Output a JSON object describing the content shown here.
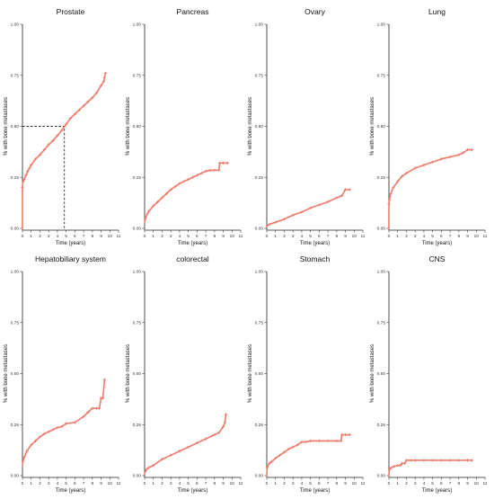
{
  "figure": {
    "line_color": "#F07A6A",
    "axis_color": "#222222",
    "background": "#ffffff"
  },
  "chart_data": [
    {
      "type": "line",
      "title": "Prostate",
      "xlabel": "Time (years)",
      "ylabel": "% with bone metastases",
      "xlim": [
        0,
        11
      ],
      "ylim": [
        0,
        1
      ],
      "xticks": [
        "0",
        "1",
        "2",
        "3",
        "4",
        "5",
        "6",
        "7",
        "8",
        "9",
        "10",
        "11"
      ],
      "yticks": [
        "0.00",
        "0.25",
        "0.50",
        "0.75",
        "1.00"
      ],
      "grid": false,
      "median_line": {
        "x": 4.8,
        "y": 0.5
      },
      "series": [
        {
          "x": [
            0,
            0,
            0.05,
            0.2,
            0.4,
            0.6,
            0.8,
            1,
            1.5,
            2,
            2.5,
            3,
            3.5,
            4,
            4.5,
            5,
            5.5,
            6,
            6.5,
            7,
            7.5,
            8,
            8.5,
            9,
            9.3,
            9.4,
            9.5
          ],
          "y": [
            0,
            0.2,
            0.23,
            0.24,
            0.26,
            0.28,
            0.295,
            0.31,
            0.34,
            0.36,
            0.385,
            0.41,
            0.43,
            0.455,
            0.48,
            0.51,
            0.54,
            0.56,
            0.58,
            0.6,
            0.62,
            0.64,
            0.665,
            0.7,
            0.72,
            0.74,
            0.76
          ]
        }
      ]
    },
    {
      "type": "line",
      "title": "Pancreas",
      "xlabel": "Time (years)",
      "ylabel": "% with bone metastases",
      "xlim": [
        0,
        11
      ],
      "ylim": [
        0,
        1
      ],
      "xticks": [
        "0",
        "1",
        "2",
        "3",
        "4",
        "5",
        "6",
        "7",
        "8",
        "9",
        "10",
        "11"
      ],
      "yticks": [
        "0.00",
        "0.25",
        "0.50",
        "0.75",
        "1.00"
      ],
      "grid": false,
      "series": [
        {
          "x": [
            0,
            0.1,
            0.3,
            0.5,
            1,
            1.5,
            2,
            2.5,
            3,
            3.5,
            4,
            4.5,
            5,
            5.5,
            6,
            6.5,
            7,
            7.5,
            8,
            8.5,
            8.6,
            9,
            9.5
          ],
          "y": [
            0.03,
            0.05,
            0.07,
            0.085,
            0.11,
            0.13,
            0.15,
            0.17,
            0.19,
            0.205,
            0.22,
            0.23,
            0.24,
            0.25,
            0.26,
            0.27,
            0.28,
            0.285,
            0.285,
            0.285,
            0.32,
            0.32,
            0.32
          ]
        }
      ]
    },
    {
      "type": "line",
      "title": "Ovary",
      "xlabel": "Time (years)",
      "ylabel": "% with bone metastases",
      "xlim": [
        0,
        11
      ],
      "ylim": [
        0,
        1
      ],
      "xticks": [
        "0",
        "1",
        "2",
        "3",
        "4",
        "5",
        "6",
        "7",
        "8",
        "9",
        "10",
        "11"
      ],
      "yticks": [
        "0.00",
        "0.25",
        "0.50",
        "0.75",
        "1.00"
      ],
      "grid": false,
      "series": [
        {
          "x": [
            0,
            0.3,
            1,
            2,
            3,
            4,
            5,
            6,
            7,
            8,
            8.6,
            9,
            9.5
          ],
          "y": [
            0.01,
            0.02,
            0.03,
            0.045,
            0.065,
            0.08,
            0.1,
            0.115,
            0.13,
            0.15,
            0.16,
            0.19,
            0.19
          ]
        }
      ]
    },
    {
      "type": "line",
      "title": "Lung",
      "xlabel": "Time (years)",
      "ylabel": "% with bone metastases",
      "xlim": [
        0,
        11
      ],
      "ylim": [
        0,
        1
      ],
      "xticks": [
        "0",
        "1",
        "2",
        "3",
        "4",
        "5",
        "6",
        "7",
        "8",
        "9",
        "10",
        "11"
      ],
      "yticks": [
        "0.00",
        "0.25",
        "0.50",
        "0.75",
        "1.00"
      ],
      "grid": false,
      "series": [
        {
          "x": [
            0,
            0,
            0.05,
            0.2,
            0.5,
            1,
            1.5,
            2,
            3,
            4,
            5,
            6,
            7,
            8,
            8.5,
            9,
            9.5
          ],
          "y": [
            0,
            0.12,
            0.14,
            0.17,
            0.2,
            0.23,
            0.255,
            0.27,
            0.295,
            0.31,
            0.325,
            0.34,
            0.35,
            0.36,
            0.37,
            0.385,
            0.385
          ]
        }
      ]
    },
    {
      "type": "line",
      "title": "Hepatobiliary system",
      "xlabel": "Time (years)",
      "ylabel": "% with bone metastases",
      "xlim": [
        0,
        11
      ],
      "ylim": [
        0,
        1
      ],
      "xticks": [
        "0",
        "1",
        "2",
        "3",
        "4",
        "5",
        "6",
        "7",
        "8",
        "9",
        "10",
        "11"
      ],
      "yticks": [
        "0.00",
        "0.25",
        "0.50",
        "0.75",
        "1.00"
      ],
      "grid": false,
      "series": [
        {
          "x": [
            0,
            0.05,
            0.2,
            0.5,
            1,
            1.5,
            2,
            2.5,
            3,
            3.5,
            4,
            4.5,
            5,
            6,
            7,
            7.5,
            8,
            8.5,
            8.8,
            9,
            9.2,
            9.4
          ],
          "y": [
            0.05,
            0.07,
            0.09,
            0.12,
            0.15,
            0.17,
            0.19,
            0.205,
            0.215,
            0.225,
            0.235,
            0.24,
            0.255,
            0.26,
            0.29,
            0.31,
            0.33,
            0.33,
            0.33,
            0.38,
            0.38,
            0.47
          ]
        }
      ]
    },
    {
      "type": "line",
      "title": "colorectal",
      "xlabel": "Time (years)",
      "ylabel": "% with bone metastases",
      "xlim": [
        0,
        11
      ],
      "ylim": [
        0,
        1
      ],
      "xticks": [
        "0",
        "1",
        "2",
        "3",
        "4",
        "5",
        "6",
        "7",
        "8",
        "9",
        "10",
        "11"
      ],
      "yticks": [
        "0.00",
        "0.25",
        "0.50",
        "0.75",
        "1.00"
      ],
      "grid": false,
      "series": [
        {
          "x": [
            0,
            0.2,
            0.5,
            1,
            2,
            3,
            4,
            5,
            6,
            7,
            8,
            8.5,
            9,
            9.2,
            9.3
          ],
          "y": [
            0.01,
            0.03,
            0.04,
            0.05,
            0.08,
            0.1,
            0.12,
            0.14,
            0.16,
            0.18,
            0.2,
            0.21,
            0.24,
            0.26,
            0.3
          ]
        }
      ]
    },
    {
      "type": "line",
      "title": "Stomach",
      "xlabel": "Time (years)",
      "ylabel": "% with bone metastases",
      "xlim": [
        0,
        11
      ],
      "ylim": [
        0,
        1
      ],
      "xticks": [
        "0",
        "1",
        "2",
        "3",
        "4",
        "5",
        "6",
        "7",
        "8",
        "9",
        "10",
        "11"
      ],
      "yticks": [
        "0.00",
        "0.25",
        "0.50",
        "0.75",
        "1.00"
      ],
      "grid": false,
      "series": [
        {
          "x": [
            0,
            0.05,
            0.3,
            0.6,
            1,
            1.5,
            2,
            2.5,
            3,
            3.5,
            4,
            4.5,
            5,
            6,
            7,
            8,
            8.5,
            8.6,
            9,
            9.5
          ],
          "y": [
            0,
            0.04,
            0.06,
            0.07,
            0.085,
            0.1,
            0.115,
            0.13,
            0.14,
            0.15,
            0.165,
            0.165,
            0.17,
            0.17,
            0.17,
            0.17,
            0.17,
            0.2,
            0.2,
            0.2
          ]
        }
      ]
    },
    {
      "type": "line",
      "title": "CNS",
      "xlabel": "Time (years)",
      "ylabel": "% with bone metastases",
      "xlim": [
        0,
        11
      ],
      "ylim": [
        0,
        1
      ],
      "xticks": [
        "0",
        "1",
        "2",
        "3",
        "4",
        "5",
        "6",
        "7",
        "8",
        "9",
        "10",
        "11"
      ],
      "yticks": [
        "0.00",
        "0.25",
        "0.50",
        "0.75",
        "1.00"
      ],
      "grid": false,
      "series": [
        {
          "x": [
            0,
            0.05,
            0.3,
            0.6,
            1,
            1.3,
            1.5,
            1.8,
            2,
            2.5,
            3,
            4,
            5,
            6,
            7,
            8,
            9,
            9.5
          ],
          "y": [
            0,
            0.03,
            0.04,
            0.045,
            0.05,
            0.05,
            0.06,
            0.06,
            0.075,
            0.075,
            0.075,
            0.075,
            0.075,
            0.075,
            0.075,
            0.075,
            0.075,
            0.075
          ]
        }
      ]
    }
  ]
}
